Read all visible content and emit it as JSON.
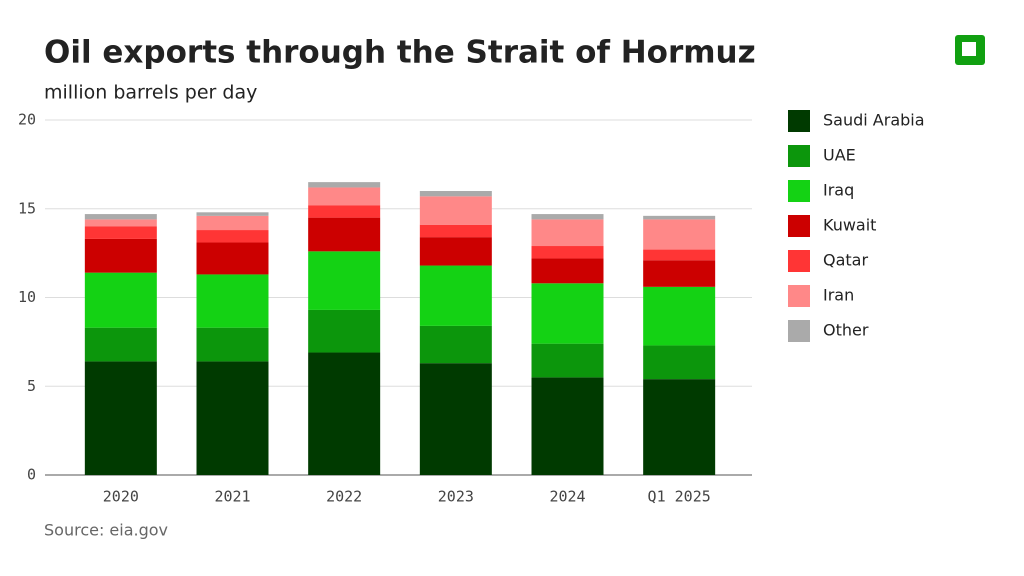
{
  "chart_data": {
    "type": "stacked_bar",
    "title": "Oil exports through the Strait of Hormuz",
    "subtitle": "million barrels per day",
    "source": "Source: eia.gov",
    "categories": [
      "2020",
      "2021",
      "2022",
      "2023",
      "2024",
      "Q1 2025"
    ],
    "series": [
      {
        "name": "Saudi Arabia",
        "color": "#003a00",
        "values": [
          6.4,
          6.4,
          6.9,
          6.3,
          5.5,
          5.4
        ]
      },
      {
        "name": "UAE",
        "color": "#0c960c",
        "values": [
          1.9,
          1.9,
          2.4,
          2.1,
          1.9,
          1.9
        ]
      },
      {
        "name": "Iraq",
        "color": "#14d214",
        "values": [
          3.1,
          3.0,
          3.3,
          3.4,
          3.4,
          3.3
        ]
      },
      {
        "name": "Kuwait",
        "color": "#cc0000",
        "values": [
          1.9,
          1.8,
          1.9,
          1.6,
          1.4,
          1.5
        ]
      },
      {
        "name": "Qatar",
        "color": "#ff3535",
        "values": [
          0.7,
          0.7,
          0.7,
          0.7,
          0.7,
          0.6
        ]
      },
      {
        "name": "Iran",
        "color": "#ff8888",
        "values": [
          0.4,
          0.8,
          1.0,
          1.6,
          1.5,
          1.7
        ]
      },
      {
        "name": "Other",
        "color": "#aaaaaa",
        "values": [
          0.3,
          0.2,
          0.3,
          0.3,
          0.3,
          0.2
        ]
      }
    ],
    "ylim": [
      0,
      20
    ],
    "yticks": [
      0,
      5,
      10,
      15,
      20
    ],
    "grid": true,
    "legend": "right"
  }
}
